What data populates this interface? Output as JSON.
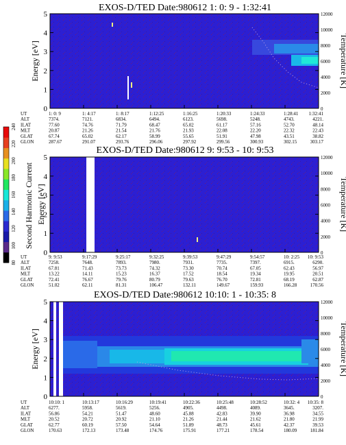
{
  "colorbar": {
    "label": "Second Harmonic Current",
    "ticks": [
      "80",
      "100",
      "120",
      "140",
      "160",
      "180",
      "200",
      "220",
      "240"
    ],
    "colors": [
      "#000000",
      "#5a2a8a",
      "#1a1aa8",
      "#2a2ad0",
      "#2a6ae8",
      "#1ab0e8",
      "#18e8d8",
      "#20e860",
      "#8ae828",
      "#e8e020",
      "#e89020",
      "#e84020",
      "#e80a0a"
    ]
  },
  "chart_data": [
    {
      "type": "heatmap",
      "title": "EXOS-D/TED   Date:980612  1: 0: 9 - 1:32:41",
      "ylabel": "Energy [eV]",
      "y2label": "Temperature [K]",
      "ylim": [
        0,
        5
      ],
      "y2lim": [
        0,
        12000
      ],
      "yticks": [
        "0",
        "1",
        "2",
        "3",
        "4",
        "5"
      ],
      "y2ticks": [
        "0",
        "2000",
        "4000",
        "6000",
        "8000",
        "10000",
        "12000"
      ],
      "background": "#2c1fd2",
      "table": {
        "rows": [
          "UT",
          "ALT",
          "ILAT",
          "MLT",
          "GLAT",
          "GLON"
        ],
        "cols": [
          [
            "1: 0: 9",
            "7374.",
            "77.60",
            "20.87",
            "67.74",
            "287.67"
          ],
          [
            "1: 4:17",
            "7121.",
            "74.76",
            "21.26",
            "65.02",
            "291.07"
          ],
          [
            "1: 8:17",
            "6834.",
            "71.79",
            "21.54",
            "62.17",
            "293.76"
          ],
          [
            "1:12:25",
            "6494.",
            "68.47",
            "21.76",
            "58.99",
            "296.06"
          ],
          [
            "1:16:25",
            "6123.",
            "65.02",
            "21.93",
            "55.65",
            "297.92"
          ],
          [
            "1:20:33",
            "5698.",
            "61.17",
            "22.08",
            "51.91",
            "299.56"
          ],
          [
            "1:24:33",
            "5248.",
            "57.16",
            "22.20",
            "47.98",
            "300.93"
          ],
          [
            "1:28:41",
            "4743.",
            "52.70",
            "22.32",
            "43.51",
            "302.15"
          ],
          [
            "1:32:41",
            "4221.",
            "48.14",
            "22.43",
            "38.82",
            "303.17"
          ]
        ]
      }
    },
    {
      "type": "heatmap",
      "title": "EXOS-D/TED   Date:980612   9: 9:53 - 10: 9:53",
      "ylabel": "Energy [eV]",
      "y2label": "Temperature [K]",
      "ylim": [
        0,
        5
      ],
      "y2lim": [
        0,
        12000
      ],
      "yticks": [
        "0",
        "1",
        "2",
        "3",
        "4",
        "5"
      ],
      "y2ticks": [
        "0",
        "2000",
        "4000",
        "6000",
        "8000",
        "10000",
        "12000"
      ],
      "background": "#2c1fd2",
      "table": {
        "rows": [
          "UT",
          "ALT",
          "ILAT",
          "MLT",
          "GLAT",
          "GLON"
        ],
        "cols": [
          [
            "9: 9:53",
            "7258.",
            "67.81",
            "13.22",
            "72.41",
            "51.02"
          ],
          [
            "9:17:29",
            "7648.",
            "71.43",
            "14.11",
            "76.67",
            "62.11"
          ],
          [
            "9:25:17",
            "7893.",
            "73.73",
            "15.23",
            "79.76",
            "81.31"
          ],
          [
            "9:32:25",
            "7980.",
            "74.32",
            "16.37",
            "80.79",
            "106.47"
          ],
          [
            "9:39:53",
            "7931.",
            "73.30",
            "17.52",
            "79.63",
            "132.11"
          ],
          [
            "9:47:29",
            "7735.",
            "70.74",
            "18.54",
            "76.70",
            "149.67"
          ],
          [
            "9:54:57",
            "7397.",
            "67.05",
            "19.34",
            "72.81",
            "159.93"
          ],
          [
            "10: 2:25",
            "6915.",
            "62.43",
            "19.95",
            "68.19",
            "166.28"
          ],
          [
            "10: 9:53",
            "6290.",
            "56.97",
            "20.51",
            "62.87",
            "170.56"
          ]
        ]
      }
    },
    {
      "type": "heatmap",
      "title": "EXOS-D/TED   Date:980612   10:10: 1 - 10:35: 8",
      "ylabel": "Energy [eV]",
      "y2label": "Temperature [K]",
      "ylim": [
        0,
        5
      ],
      "y2lim": [
        0,
        12000
      ],
      "yticks": [
        "0",
        "1",
        "2",
        "3",
        "4",
        "5"
      ],
      "y2ticks": [
        "0",
        "2000",
        "4000",
        "6000",
        "8000",
        "10000",
        "12000"
      ],
      "background": "#2c1fd2",
      "table": {
        "rows": [
          "UT",
          "ALT",
          "ILAT",
          "MLT",
          "GLAT",
          "GLON"
        ],
        "cols": [
          [
            "10:10: 1",
            "6277.",
            "56.86",
            "20.52",
            "62.77",
            "170.63"
          ],
          [
            "10:13:17",
            "5958.",
            "54.21",
            "20.72",
            "60.19",
            "172.13"
          ],
          [
            "10:16:29",
            "5619.",
            "51.47",
            "20.92",
            "57.50",
            "173.48"
          ],
          [
            "10:19:41",
            "5256.",
            "48.60",
            "21.10",
            "54.64",
            "174.76"
          ],
          [
            "10:22:36",
            "4905.",
            "45.88",
            "21.26",
            "51.89",
            "175.91"
          ],
          [
            "10:25:48",
            "4498.",
            "42.83",
            "21.44",
            "48.73",
            "177.21"
          ],
          [
            "10:28:52",
            "4089.",
            "39.90",
            "21.62",
            "45.61",
            "178.54"
          ],
          [
            "10:32: 4",
            "3645.",
            "36.98",
            "21.80",
            "42.37",
            "180.09"
          ],
          [
            "10:35: 8",
            "3207.",
            "34.55",
            "21.99",
            "39.53",
            "181.84"
          ]
        ]
      }
    }
  ]
}
